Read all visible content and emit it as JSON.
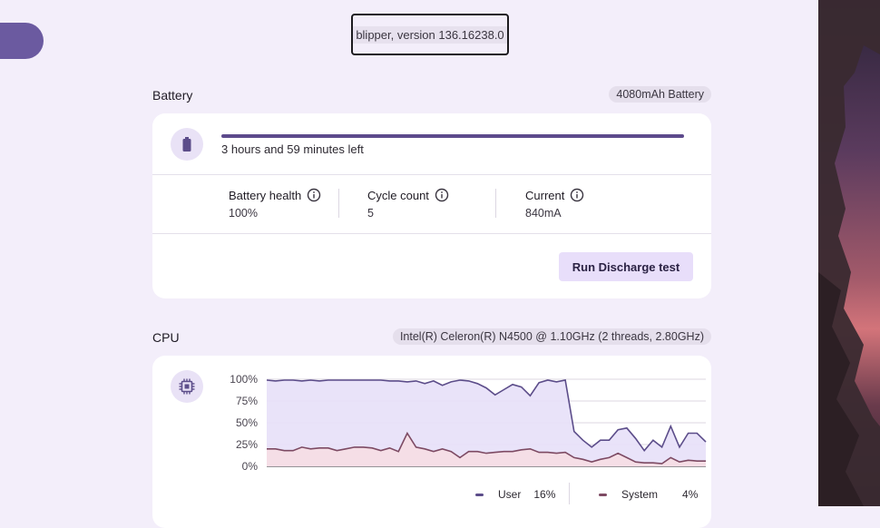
{
  "app": {
    "version_text": "blipper, version 136.16238.0"
  },
  "battery": {
    "title": "Battery",
    "capacity_chip": "4080mAh Battery",
    "icon": "battery-icon",
    "charge_fraction": 1.0,
    "time_left": "3 hours and 59 minutes left",
    "stats": [
      {
        "label": "Battery health",
        "value": "100%"
      },
      {
        "label": "Cycle count",
        "value": "5"
      },
      {
        "label": "Current",
        "value": "840mA"
      }
    ],
    "run_button": "Run Discharge test"
  },
  "cpu": {
    "title": "CPU",
    "model_chip": "Intel(R) Celeron(R) N4500 @ 1.10GHz (2 threads, 2.80GHz)",
    "icon": "cpu-chip-icon",
    "legend": [
      {
        "name": "User",
        "value": "16%",
        "color": "#5c4d8a"
      },
      {
        "name": "System",
        "value": "4%",
        "color": "#7d4a63"
      }
    ]
  },
  "chart_data": {
    "type": "area",
    "y_ticks": [
      "100%",
      "75%",
      "50%",
      "25%",
      "0%"
    ],
    "ylim": [
      0,
      100
    ],
    "series": [
      {
        "name": "User",
        "color": "#5c4d8a",
        "values": [
          99,
          98,
          99,
          99,
          98,
          99,
          98,
          99,
          99,
          99,
          99,
          99,
          99,
          99,
          98,
          98,
          97,
          98,
          95,
          98,
          93,
          97,
          99,
          98,
          95,
          90,
          82,
          88,
          94,
          91,
          81,
          96,
          99,
          97,
          99,
          40,
          30,
          22,
          30,
          30,
          42,
          44,
          32,
          18,
          30,
          22,
          46,
          22,
          38,
          38,
          28
        ]
      },
      {
        "name": "System",
        "color": "#7d4a63",
        "values": [
          20,
          20,
          18,
          18,
          22,
          20,
          21,
          21,
          18,
          20,
          22,
          22,
          21,
          18,
          21,
          17,
          38,
          22,
          20,
          17,
          20,
          17,
          10,
          17,
          17,
          15,
          16,
          17,
          17,
          19,
          20,
          16,
          16,
          15,
          16,
          10,
          8,
          5,
          8,
          10,
          15,
          10,
          5,
          4,
          4,
          3,
          10,
          5,
          7,
          6,
          6
        ]
      }
    ]
  }
}
